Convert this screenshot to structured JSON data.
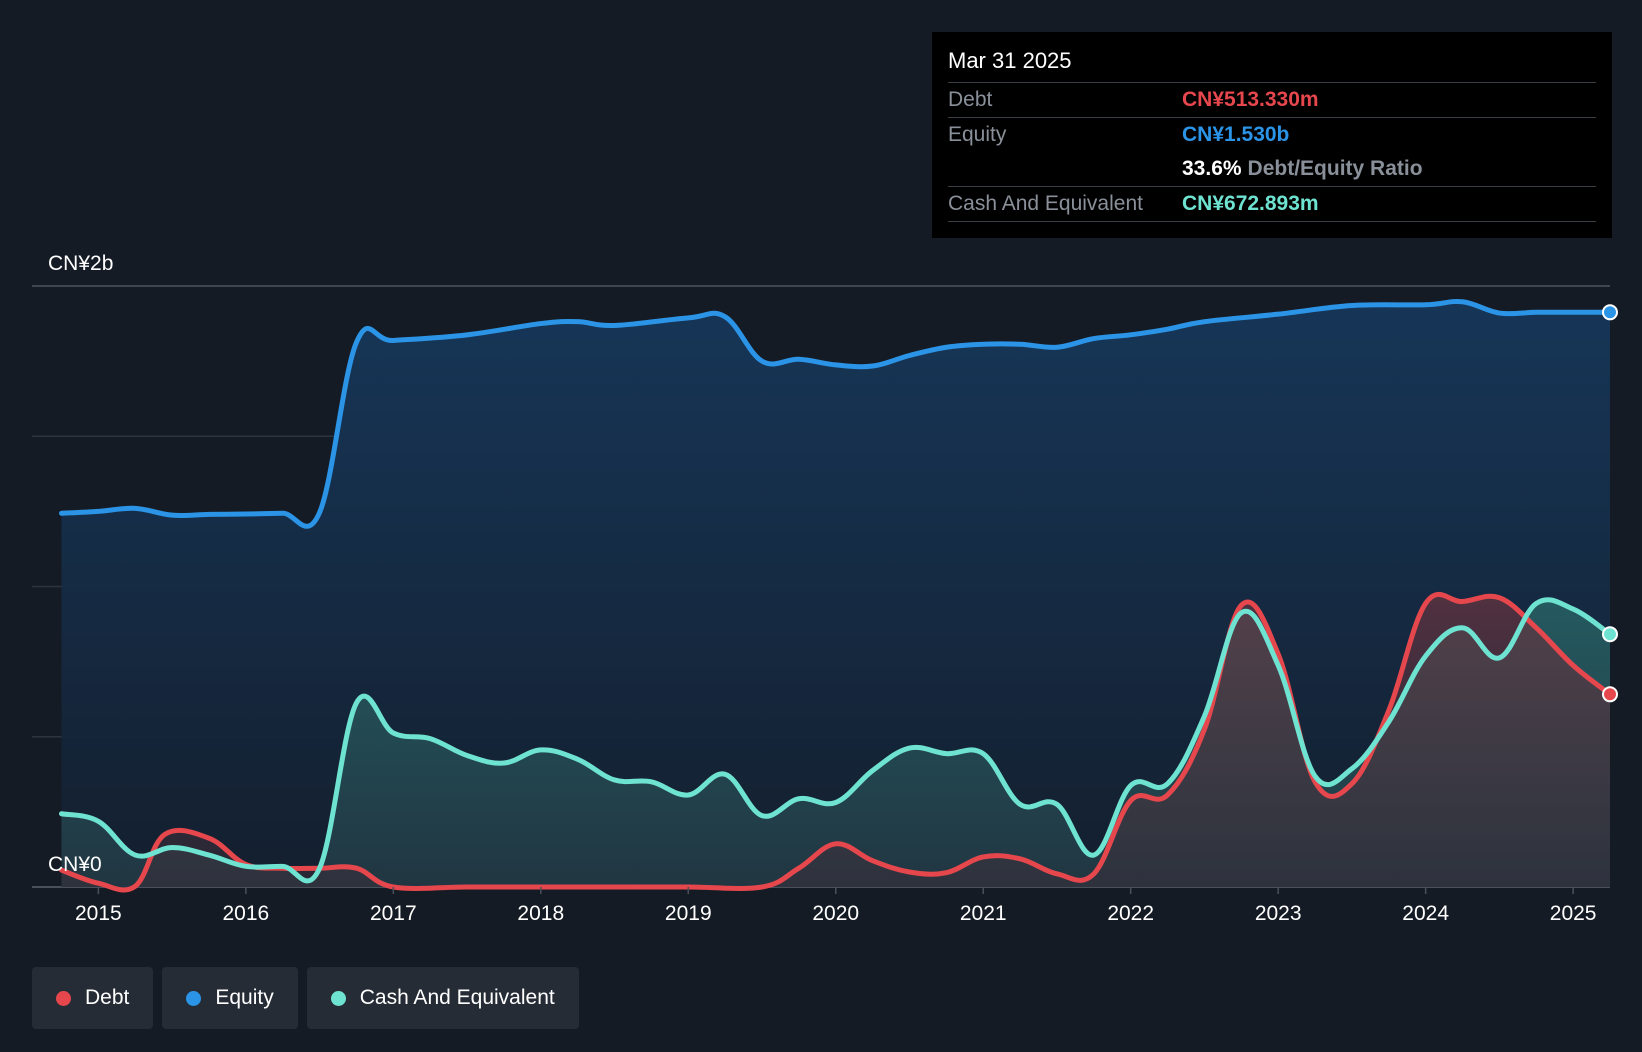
{
  "colors": {
    "debt": "#e5474d",
    "equity": "#2b94e6",
    "cash": "#6fe3d1",
    "background": "#151b24",
    "tooltip_bg": "#000000"
  },
  "tooltip": {
    "date": "Mar 31 2025",
    "rows": [
      {
        "label": "Debt",
        "value": "CN¥513.330m",
        "color": "#e5474d"
      },
      {
        "label": "Equity",
        "value": "CN¥1.530b",
        "color": "#2b94e6"
      },
      {
        "ratio_value": "33.6%",
        "ratio_label": "Debt/Equity Ratio"
      },
      {
        "label": "Cash And Equivalent",
        "value": "CN¥672.893m",
        "color": "#6fe3d1"
      }
    ]
  },
  "legend": {
    "items": [
      {
        "label": "Debt",
        "color": "#e5474d"
      },
      {
        "label": "Equity",
        "color": "#2b94e6"
      },
      {
        "label": "Cash And Equivalent",
        "color": "#6fe3d1"
      }
    ]
  },
  "chart_data": {
    "type": "area",
    "title": "",
    "xlabel": "",
    "ylabel": "",
    "y_unit": "CN¥ m",
    "y_tick_labels": [
      {
        "value": 0,
        "label": "CN¥0"
      },
      {
        "value": 1600,
        "label": "CN¥2b"
      }
    ],
    "ylim": [
      0,
      1600
    ],
    "xlim": [
      2014.55,
      2025.25
    ],
    "x_ticks": [
      2015,
      2016,
      2017,
      2018,
      2019,
      2020,
      2021,
      2022,
      2023,
      2024,
      2025
    ],
    "x_tick_labels": [
      "2015",
      "2016",
      "2017",
      "2018",
      "2019",
      "2020",
      "2021",
      "2022",
      "2023",
      "2024",
      "2025"
    ],
    "grid": true,
    "legend_position": "bottom-left",
    "series": [
      {
        "name": "Debt",
        "color": "#e5474d",
        "x": [
          2014.75,
          2015.0,
          2015.25,
          2015.45,
          2015.75,
          2016.0,
          2016.25,
          2016.5,
          2016.75,
          2017.0,
          2017.5,
          2018.0,
          2018.5,
          2019.0,
          2019.5,
          2019.75,
          2020.0,
          2020.25,
          2020.5,
          2020.75,
          2021.0,
          2021.25,
          2021.5,
          2021.75,
          2022.0,
          2022.25,
          2022.5,
          2022.75,
          2023.0,
          2023.25,
          2023.5,
          2023.75,
          2024.0,
          2024.25,
          2024.5,
          2024.75,
          2025.0,
          2025.25
        ],
        "values": [
          45,
          10,
          2,
          140,
          130,
          60,
          50,
          50,
          50,
          0,
          0,
          0,
          0,
          0,
          0,
          50,
          115,
          70,
          40,
          38,
          80,
          75,
          35,
          35,
          230,
          245,
          420,
          750,
          620,
          280,
          275,
          470,
          755,
          760,
          770,
          690,
          590,
          513
        ]
      },
      {
        "name": "Equity",
        "color": "#2b94e6",
        "x": [
          2014.75,
          2015.0,
          2015.25,
          2015.5,
          2015.75,
          2016.0,
          2016.25,
          2016.5,
          2016.75,
          2017.0,
          2017.5,
          2018.0,
          2018.25,
          2018.5,
          2019.0,
          2019.25,
          2019.5,
          2019.75,
          2020.0,
          2020.25,
          2020.5,
          2020.75,
          2021.0,
          2021.25,
          2021.5,
          2021.75,
          2022.0,
          2022.25,
          2022.5,
          2023.0,
          2023.5,
          2024.0,
          2024.25,
          2024.5,
          2024.75,
          2025.0,
          2025.25
        ],
        "values": [
          995,
          1000,
          1008,
          990,
          992,
          993,
          995,
          997,
          1450,
          1455,
          1470,
          1500,
          1505,
          1495,
          1515,
          1518,
          1400,
          1405,
          1390,
          1387,
          1415,
          1437,
          1445,
          1445,
          1437,
          1460,
          1470,
          1485,
          1505,
          1525,
          1548,
          1550,
          1558,
          1528,
          1530,
          1530,
          1530
        ]
      },
      {
        "name": "Cash And Equivalent",
        "color": "#6fe3d1",
        "x": [
          2014.75,
          2015.0,
          2015.25,
          2015.5,
          2015.75,
          2016.0,
          2016.25,
          2016.5,
          2016.75,
          2017.0,
          2017.25,
          2017.5,
          2017.75,
          2018.0,
          2018.25,
          2018.5,
          2018.75,
          2019.0,
          2019.25,
          2019.5,
          2019.75,
          2020.0,
          2020.25,
          2020.5,
          2020.75,
          2021.0,
          2021.25,
          2021.5,
          2021.75,
          2022.0,
          2022.25,
          2022.5,
          2022.75,
          2023.0,
          2023.25,
          2023.5,
          2023.75,
          2024.0,
          2024.25,
          2024.5,
          2024.75,
          2025.0,
          2025.25
        ],
        "values": [
          195,
          175,
          85,
          105,
          85,
          55,
          55,
          50,
          490,
          410,
          395,
          350,
          330,
          365,
          340,
          285,
          280,
          245,
          300,
          190,
          235,
          225,
          310,
          370,
          355,
          355,
          220,
          220,
          85,
          270,
          275,
          455,
          730,
          590,
          295,
          315,
          440,
          615,
          690,
          610,
          755,
          740,
          673
        ]
      }
    ]
  }
}
